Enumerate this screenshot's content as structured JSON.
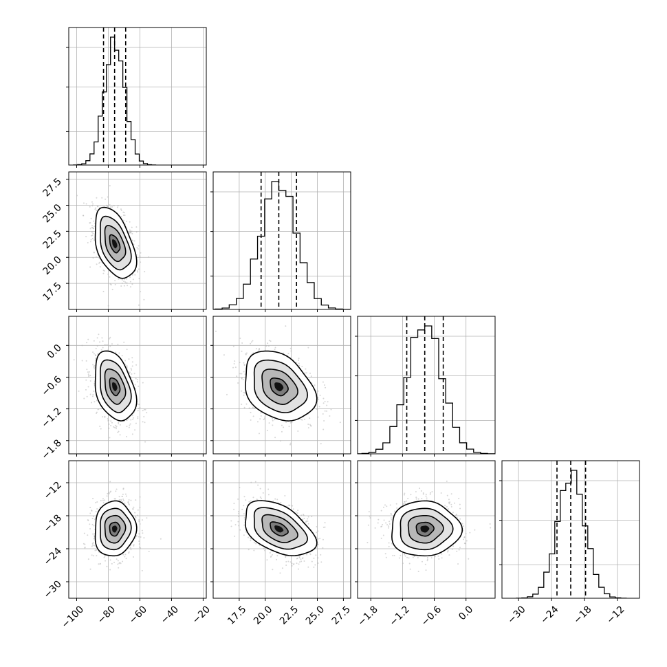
{
  "chart_data": {
    "type": "corner",
    "parameters": [
      {
        "index": 0,
        "range": [
          -105,
          -18
        ],
        "ticks": [
          -100,
          -80,
          -60,
          -40,
          -20
        ],
        "tick_labels": [
          "−100",
          "−80",
          "−60",
          "−40",
          "−20"
        ],
        "mean": -76,
        "sd": 6.5,
        "quantiles": [
          -83,
          -76,
          -69
        ]
      },
      {
        "index": 1,
        "range": [
          15.0,
          28.2
        ],
        "ticks": [
          17.5,
          20.0,
          22.5,
          25.0,
          27.5
        ],
        "tick_labels": [
          "17.5",
          "20.0",
          "22.5",
          "25.0",
          "27.5"
        ],
        "mean": 21.3,
        "sd": 1.7,
        "quantiles": [
          19.6,
          21.3,
          23.0
        ]
      },
      {
        "index": 2,
        "range": [
          -2.05,
          0.55
        ],
        "ticks": [
          -1.8,
          -1.2,
          -0.6,
          0.0
        ],
        "tick_labels": [
          "−1.8",
          "−1.2",
          "−0.6",
          "0.0"
        ],
        "mean": -0.78,
        "sd": 0.33,
        "quantiles": [
          -1.12,
          -0.78,
          -0.43
        ]
      },
      {
        "index": 3,
        "range": [
          -33,
          -8
        ],
        "ticks": [
          -30,
          -24,
          -18,
          -12
        ],
        "tick_labels": [
          "−30",
          "−24",
          "−18",
          "−12"
        ],
        "mean": -20.4,
        "sd": 2.5,
        "quantiles": [
          -23.0,
          -20.5,
          -17.8
        ]
      }
    ],
    "correlations": [
      {
        "pair": [
          0,
          1
        ],
        "rho": -0.45
      },
      {
        "pair": [
          0,
          2
        ],
        "rho": -0.35
      },
      {
        "pair": [
          0,
          3
        ],
        "rho": 0.05
      },
      {
        "pair": [
          1,
          2
        ],
        "rho": -0.3
      },
      {
        "pair": [
          1,
          3
        ],
        "rho": -0.45
      },
      {
        "pair": [
          2,
          3
        ],
        "rho": 0.0
      }
    ],
    "histogram_bins": 20,
    "contour_levels": [
      0.5,
      1.0,
      1.5,
      2.0
    ],
    "grid": true,
    "colors": {
      "line": "#000000",
      "scatter": "#b4b4b4",
      "grid": "#b0b0b0",
      "quantile_line": "#000000"
    }
  }
}
